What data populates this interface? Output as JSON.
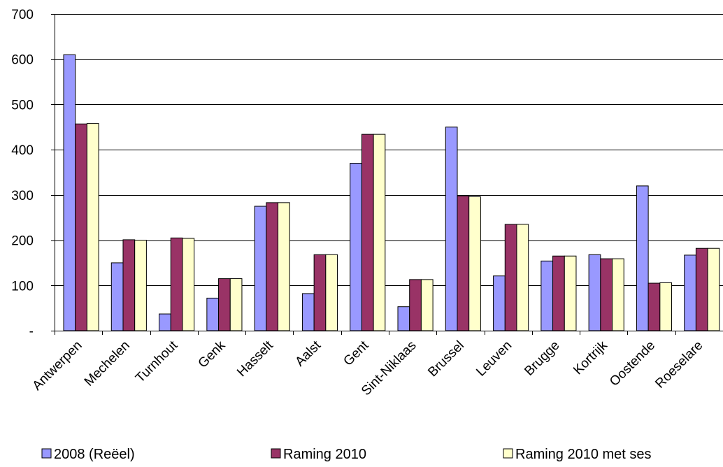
{
  "chart_data": {
    "type": "bar",
    "title": "",
    "xlabel": "",
    "ylabel": "",
    "ylim": [
      0,
      700
    ],
    "yticks": [
      0,
      100,
      200,
      300,
      400,
      500,
      600,
      700
    ],
    "ytick_labels": [
      "-",
      "100",
      "200",
      "300",
      "400",
      "500",
      "600",
      "700"
    ],
    "grid": "horizontal",
    "legend_position": "bottom",
    "categories": [
      "Antwerpen",
      "Mechelen",
      "Turnhout",
      "Genk",
      "Hasselt",
      "Aalst",
      "Gent",
      "Sint-Niklaas",
      "Brussel",
      "Leuven",
      "Brugge",
      "Kortrijk",
      "Oostende",
      "Roeselare"
    ],
    "series": [
      {
        "name": "2008 (Reëel)",
        "color": "#9999ff",
        "values": [
          610,
          150,
          37,
          72,
          275,
          82,
          370,
          53,
          450,
          121,
          154,
          168,
          320,
          167
        ]
      },
      {
        "name": "Raming 2010",
        "color": "#993366",
        "values": [
          457,
          201,
          205,
          115,
          283,
          168,
          434,
          113,
          298,
          235,
          165,
          159,
          105,
          182
        ]
      },
      {
        "name": "Raming 2010 met ses",
        "color": "#ffffcc",
        "values": [
          458,
          200,
          204,
          115,
          283,
          168,
          434,
          113,
          296,
          235,
          165,
          159,
          106,
          182
        ]
      }
    ]
  }
}
